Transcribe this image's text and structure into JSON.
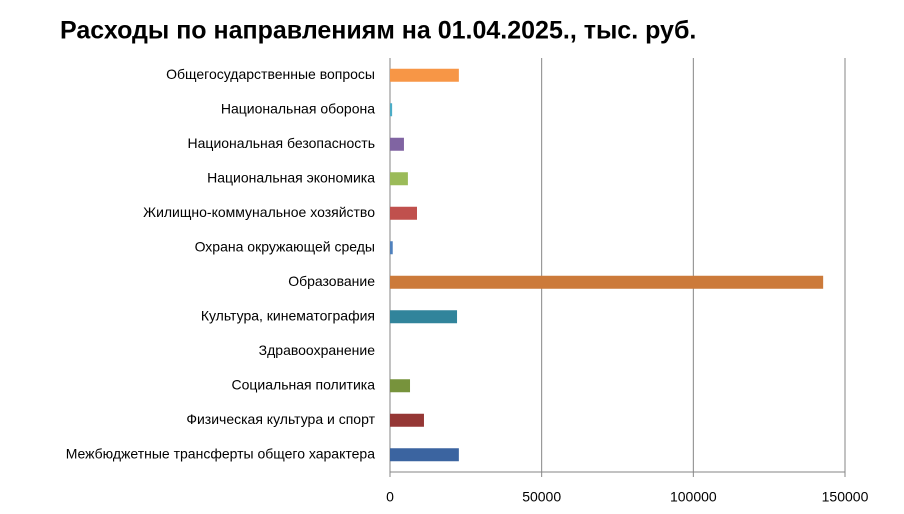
{
  "chart_data": {
    "type": "bar",
    "orientation": "horizontal",
    "title": "Расходы по направлениям на 01.04.2025., тыс. руб.",
    "categories": [
      "Общегосударственные вопросы",
      "Национальная оборона",
      "Национальная безопасность",
      "Национальная экономика",
      "Жилищно-коммунальное хозяйство",
      "Охрана окружающей среды",
      "Образование",
      "Культура, кинематография",
      "Здравоохранение",
      "Социальная политика",
      "Физическая культура и спорт",
      "Межбюджетные трансферты общего характера"
    ],
    "values": [
      22700,
      700,
      4600,
      5900,
      8900,
      900,
      142800,
      22100,
      0,
      6600,
      11200,
      22700
    ],
    "colors": [
      "#f79646",
      "#4bacc6",
      "#8064a2",
      "#9bbb59",
      "#c0504d",
      "#4f81bd",
      "#cc7a3a",
      "#31849b",
      "#8064a2",
      "#77933c",
      "#953735",
      "#3b64a0"
    ],
    "xlim": [
      0,
      150000
    ],
    "xticks": [
      0,
      50000,
      100000,
      150000
    ],
    "grid": true
  }
}
